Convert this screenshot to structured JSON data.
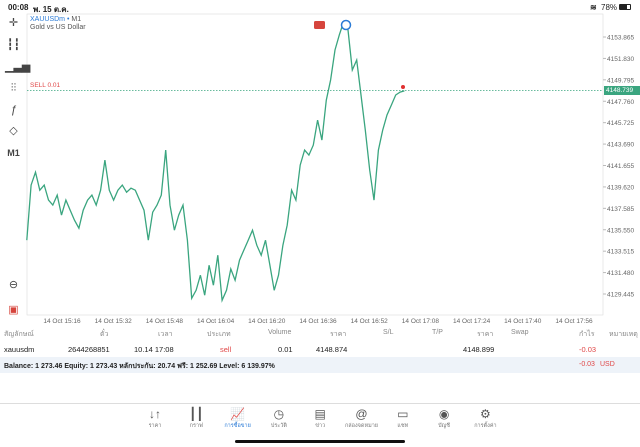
{
  "status_bar": {
    "time": "00:08",
    "date": "พ. 15 ต.ค.",
    "battery": "78%"
  },
  "chart_header": {
    "symbol": "XAUUSDm",
    "separator": "•",
    "timeframe": "M1",
    "description": "Gold vs US Dollar"
  },
  "toolbar": {
    "timeframe_label": "M1"
  },
  "order_line": {
    "label": "SELL 0.01",
    "price": "4148.739"
  },
  "chart_data": {
    "type": "line",
    "symbol": "XAUUSDm",
    "x_start": "15:05",
    "x_end": "17:03",
    "y_ticks": [
      "4153.865",
      "4151.830",
      "4149.795",
      "4147.760",
      "4145.725",
      "4143.690",
      "4141.655",
      "4139.620",
      "4137.585",
      "4135.550",
      "4133.515",
      "4131.480",
      "4129.445"
    ],
    "x_ticks": [
      "14 Oct 15:16",
      "14 Oct 15:32",
      "14 Oct 15:48",
      "14 Oct 16:04",
      "14 Oct 16:20",
      "14 Oct 16:36",
      "14 Oct 16:52",
      "14 Oct 17:08",
      "14 Oct 17:24",
      "14 Oct 17:40",
      "14 Oct 17:56"
    ],
    "values": [
      4134.56,
      4139.79,
      4141.02,
      4139.31,
      4139.79,
      4138.37,
      4137.89,
      4138.84,
      4136.94,
      4138.37,
      4137.41,
      4136.46,
      4135.7,
      4137.41,
      4138.37,
      4138.84,
      4137.89,
      4139.31,
      4142.17,
      4139.31,
      4138.37,
      4139.31,
      4139.79,
      4139.12,
      4139.5,
      4139.31,
      4138.37,
      4137.41,
      4134.56,
      4137.22,
      4137.89,
      4138.84,
      4143.12,
      4137.89,
      4135.51,
      4136.94,
      4137.89,
      4134.56,
      4129.04,
      4129.8,
      4131.23,
      4129.33,
      4132.18,
      4130.28,
      4133.13,
      4128.85,
      4129.8,
      4131.83,
      4130.76,
      4132.66,
      4133.61,
      4134.56,
      4135.51,
      4134.08,
      4133.13,
      4134.56,
      4132.18,
      4129.8,
      4131.23,
      4134.08,
      4135.99,
      4139.31,
      4138.37,
      4141.69,
      4143.12,
      4142.64,
      4143.59,
      4145.97,
      4144.07,
      4147.87,
      4149.78,
      4152.63,
      4154.06,
      4155.29,
      4154.53,
      4150.73,
      4151.68,
      4148.35,
      4145.02,
      4141.22,
      4138.37,
      4143.12,
      4145.02,
      4146.45,
      4147.4,
      4148.35,
      4148.63,
      4148.74
    ],
    "line_color": "#3aa57f"
  },
  "table": {
    "headers": [
      "สัญลักษณ์",
      "ตั๋ว",
      "เวลา",
      "ประเภท",
      "Volume",
      "ราคา",
      "S/L",
      "T/P",
      "ราคา",
      "Swap",
      "กำไร",
      "หมายเหตุ"
    ],
    "rows": [
      {
        "symbol": "xauusdm",
        "ticket": "2644268851",
        "time": "10.14 17:08",
        "type": "sell",
        "volume": "0.01",
        "open_price": "4148.874",
        "sl": "",
        "tp": "",
        "price": "4148.899",
        "swap": "",
        "profit": "-0.03",
        "comment": ""
      }
    ],
    "balance_text": "Balance: 1 273.46 Equity: 1 273.43 หลักประกัน: 20.74 ฟรี: 1 252.69 Level: 6 139.97%",
    "total_profit": "-0.03",
    "currency": "USD"
  },
  "nav": [
    {
      "label": "ราคา",
      "icon": "↓↑"
    },
    {
      "label": "กราฟ",
      "icon": "┃┃"
    },
    {
      "label": "การซื้อขาย",
      "icon": "📈"
    },
    {
      "label": "ประวัติ",
      "icon": "◷"
    },
    {
      "label": "ข่าว",
      "icon": "▤"
    },
    {
      "label": "กล่องจดหมาย",
      "icon": "@"
    },
    {
      "label": "แชท",
      "icon": "▭"
    },
    {
      "label": "บัญชี",
      "icon": "◉"
    },
    {
      "label": "การตั้งค่า",
      "icon": "⚙"
    }
  ]
}
